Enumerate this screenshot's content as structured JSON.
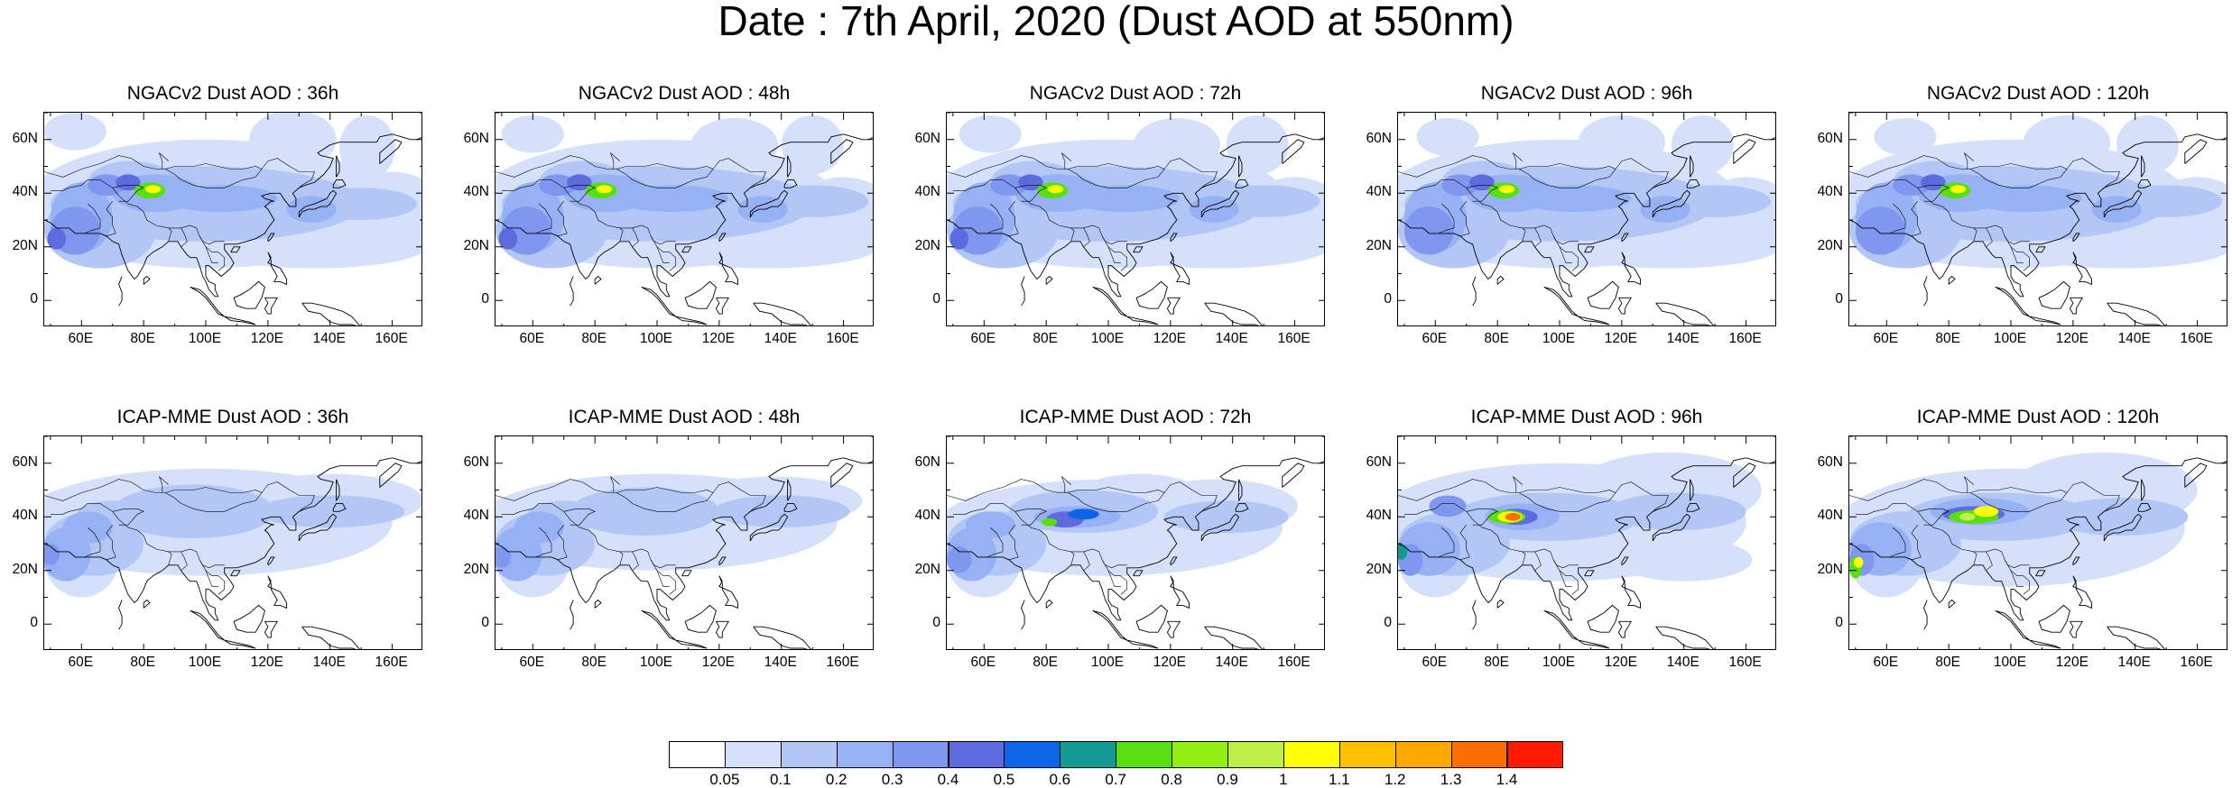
{
  "title": "Date : 7th April, 2020 (Dust AOD at 550nm)",
  "chart_data": {
    "type": "heatmap",
    "title": "Date : 7th April, 2020 (Dust AOD at 550nm)",
    "domain": {
      "lon_range": [
        48,
        170
      ],
      "lat_range": [
        -10,
        70
      ]
    },
    "x_ticks": [
      "60E",
      "80E",
      "100E",
      "120E",
      "140E",
      "160E"
    ],
    "y_ticks": [
      "60N",
      "40N",
      "20N",
      "0"
    ],
    "x_tick_values": [
      60,
      80,
      100,
      120,
      140,
      160
    ],
    "y_tick_values": [
      60,
      40,
      20,
      0
    ],
    "colorbar": {
      "levels": [
        "0.05",
        "0.1",
        "0.2",
        "0.3",
        "0.4",
        "0.5",
        "0.6",
        "0.7",
        "0.8",
        "0.9",
        "1",
        "1.1",
        "1.2",
        "1.3",
        "1.4"
      ],
      "colors": [
        "#ffffff",
        "#d5e1fb",
        "#b2c7f6",
        "#97b2f4",
        "#7f97ee",
        "#5e6bde",
        "#0e64e6",
        "#139a95",
        "#57df12",
        "#92f112",
        "#beef48",
        "#ffff00",
        "#ffc200",
        "#ffa800",
        "#ff6e00",
        "#ff1a00"
      ]
    },
    "rows": [
      {
        "model": "NGACv2",
        "panels": [
          {
            "title": "NGACv2 Dust AOD : 36h",
            "lead": "36h"
          },
          {
            "title": "NGACv2 Dust AOD : 48h",
            "lead": "48h"
          },
          {
            "title": "NGACv2 Dust AOD : 72h",
            "lead": "72h"
          },
          {
            "title": "NGACv2 Dust AOD : 96h",
            "lead": "96h"
          },
          {
            "title": "NGACv2 Dust AOD : 120h",
            "lead": "120h"
          }
        ]
      },
      {
        "model": "ICAP-MME",
        "panels": [
          {
            "title": "ICAP-MME Dust AOD : 36h",
            "lead": "36h"
          },
          {
            "title": "ICAP-MME Dust AOD : 48h",
            "lead": "48h"
          },
          {
            "title": "ICAP-MME Dust AOD : 72h",
            "lead": "72h"
          },
          {
            "title": "ICAP-MME Dust AOD : 96h",
            "lead": "96h"
          },
          {
            "title": "ICAP-MME Dust AOD : 120h",
            "lead": "120h"
          }
        ]
      }
    ]
  }
}
